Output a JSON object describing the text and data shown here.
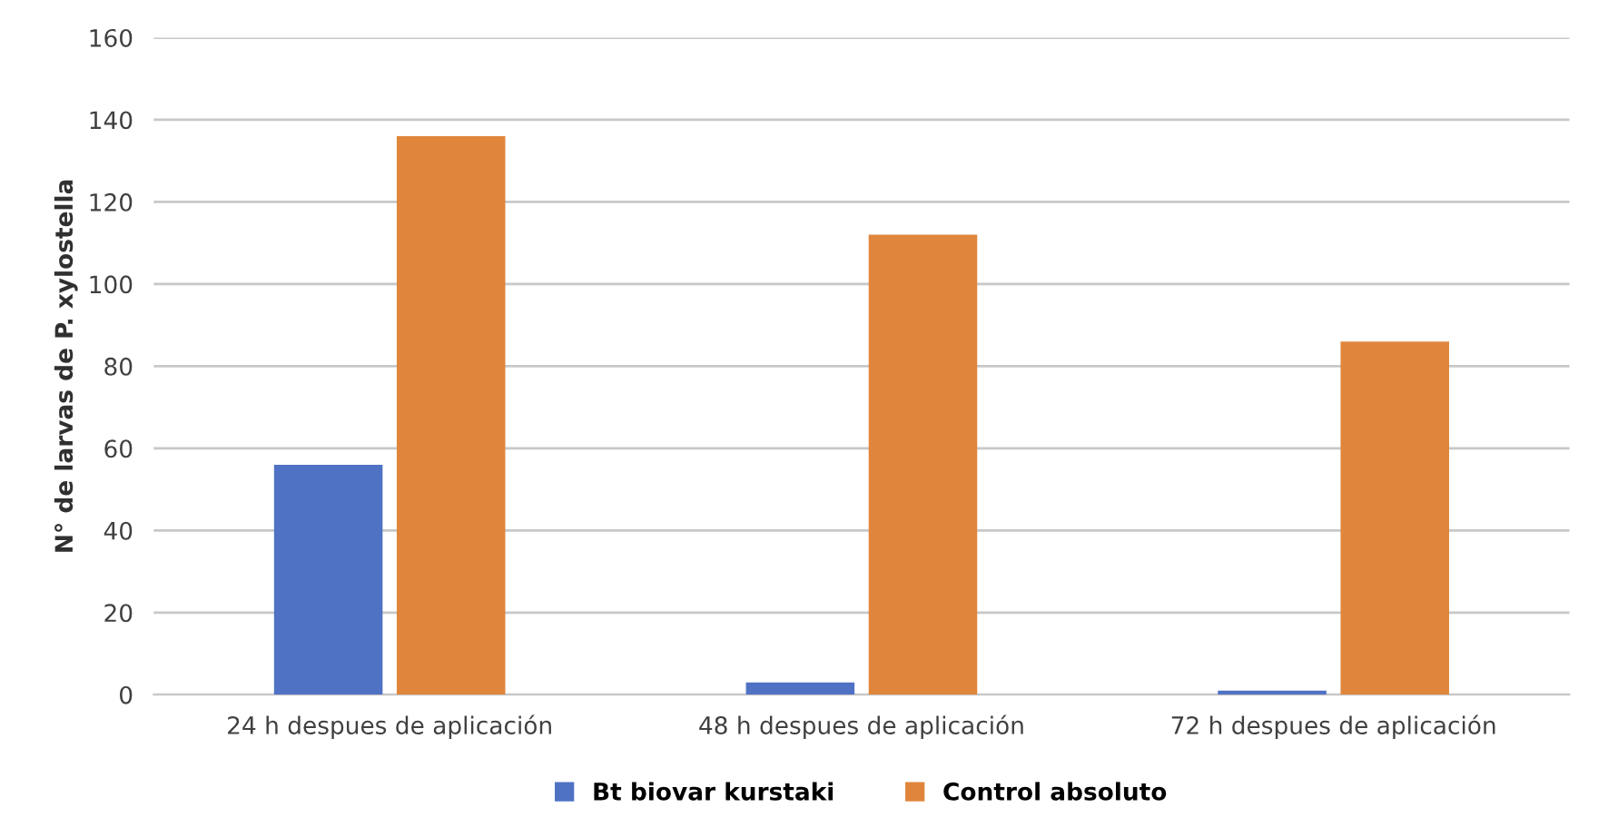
{
  "chart_data": {
    "type": "bar",
    "ylabel": "N° de larvas de P. xylostella",
    "categories": [
      "24 h despues de aplicación",
      "48 h despues de aplicación",
      "72 h despues de aplicación"
    ],
    "series": [
      {
        "name": "Bt biovar kurstaki",
        "color": "#4f72c4",
        "values": [
          56,
          3,
          1
        ]
      },
      {
        "name": "Control absoluto",
        "color": "#e0863c",
        "values": [
          136,
          112,
          86
        ]
      }
    ],
    "ylim": [
      0,
      160
    ],
    "yticks": [
      0,
      20,
      40,
      60,
      80,
      100,
      120,
      140,
      160
    ],
    "grid": "y",
    "legend": "bottom"
  }
}
